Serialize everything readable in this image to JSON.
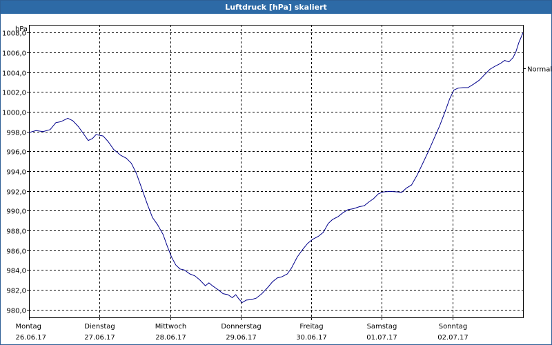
{
  "chart_data": {
    "type": "line",
    "title": "Luftdruck [hPa] skaliert",
    "ylabel": "hPa",
    "ylim": [
      979.2,
      1008.8
    ],
    "yticks": [
      980,
      982,
      984,
      986,
      988,
      990,
      992,
      994,
      996,
      998,
      1000,
      1002,
      1004,
      1006,
      1008
    ],
    "ytick_labels": [
      "980,0",
      "982,0",
      "984,0",
      "986,0",
      "988,0",
      "990,0",
      "992,0",
      "994,0",
      "996,0",
      "998,0",
      "1000,0",
      "1002,0",
      "1004,0",
      "1006,0",
      "1008,0"
    ],
    "xlim": [
      0,
      7
    ],
    "day_labels": [
      {
        "day": "Montag",
        "date": "26.06.17"
      },
      {
        "day": "Dienstag",
        "date": "27.06.17"
      },
      {
        "day": "Mittwoch",
        "date": "28.06.17"
      },
      {
        "day": "Donnerstag",
        "date": "29.06.17"
      },
      {
        "day": "Freitag",
        "date": "30.06.17"
      },
      {
        "day": "Samstag",
        "date": "01.07.17"
      },
      {
        "day": "Sonntag",
        "date": "02.07.17"
      }
    ],
    "reference_line": {
      "label": "Normal",
      "value": 1004.4
    },
    "series": [
      {
        "name": "Luftdruck",
        "color": "#00008b",
        "points": [
          [
            0.0,
            997.9
          ],
          [
            0.1,
            998.1
          ],
          [
            0.2,
            998.0
          ],
          [
            0.3,
            998.2
          ],
          [
            0.38,
            998.9
          ],
          [
            0.45,
            999.0
          ],
          [
            0.55,
            999.35
          ],
          [
            0.62,
            999.1
          ],
          [
            0.7,
            998.5
          ],
          [
            0.78,
            997.7
          ],
          [
            0.84,
            997.1
          ],
          [
            0.9,
            997.3
          ],
          [
            0.95,
            997.7
          ],
          [
            1.05,
            997.55
          ],
          [
            1.12,
            997.0
          ],
          [
            1.2,
            996.2
          ],
          [
            1.3,
            995.6
          ],
          [
            1.38,
            995.3
          ],
          [
            1.45,
            994.8
          ],
          [
            1.52,
            993.8
          ],
          [
            1.6,
            992.2
          ],
          [
            1.68,
            990.6
          ],
          [
            1.75,
            989.3
          ],
          [
            1.82,
            988.6
          ],
          [
            1.9,
            987.6
          ],
          [
            1.96,
            986.4
          ],
          [
            2.02,
            985.3
          ],
          [
            2.08,
            984.5
          ],
          [
            2.14,
            984.1
          ],
          [
            2.2,
            984.0
          ],
          [
            2.28,
            983.6
          ],
          [
            2.35,
            983.4
          ],
          [
            2.42,
            983.0
          ],
          [
            2.5,
            982.4
          ],
          [
            2.55,
            982.7
          ],
          [
            2.6,
            982.4
          ],
          [
            2.68,
            982.0
          ],
          [
            2.75,
            981.6
          ],
          [
            2.82,
            981.5
          ],
          [
            2.88,
            981.2
          ],
          [
            2.93,
            981.5
          ],
          [
            2.97,
            981.1
          ],
          [
            3.02,
            980.7
          ],
          [
            3.08,
            980.95
          ],
          [
            3.15,
            981.0
          ],
          [
            3.22,
            981.15
          ],
          [
            3.3,
            981.6
          ],
          [
            3.38,
            982.2
          ],
          [
            3.45,
            982.8
          ],
          [
            3.52,
            983.2
          ],
          [
            3.58,
            983.3
          ],
          [
            3.66,
            983.6
          ],
          [
            3.72,
            984.2
          ],
          [
            3.8,
            985.3
          ],
          [
            3.88,
            986.1
          ],
          [
            3.95,
            986.7
          ],
          [
            4.02,
            987.1
          ],
          [
            4.1,
            987.4
          ],
          [
            4.17,
            987.8
          ],
          [
            4.24,
            988.7
          ],
          [
            4.3,
            989.1
          ],
          [
            4.38,
            989.4
          ],
          [
            4.45,
            989.8
          ],
          [
            4.52,
            990.1
          ],
          [
            4.6,
            990.2
          ],
          [
            4.68,
            990.4
          ],
          [
            4.75,
            990.5
          ],
          [
            4.82,
            990.9
          ],
          [
            4.88,
            991.2
          ],
          [
            4.95,
            991.7
          ],
          [
            5.02,
            991.9
          ],
          [
            5.12,
            991.95
          ],
          [
            5.22,
            991.9
          ],
          [
            5.28,
            991.85
          ],
          [
            5.35,
            992.3
          ],
          [
            5.42,
            992.6
          ],
          [
            5.5,
            993.6
          ],
          [
            5.58,
            994.8
          ],
          [
            5.66,
            996.0
          ],
          [
            5.74,
            997.3
          ],
          [
            5.82,
            998.6
          ],
          [
            5.9,
            1000.1
          ],
          [
            5.96,
            1001.3
          ],
          [
            6.02,
            1002.2
          ],
          [
            6.08,
            1002.4
          ],
          [
            6.15,
            1002.45
          ],
          [
            6.22,
            1002.45
          ],
          [
            6.3,
            1002.8
          ],
          [
            6.38,
            1003.2
          ],
          [
            6.46,
            1003.8
          ],
          [
            6.53,
            1004.3
          ],
          [
            6.6,
            1004.6
          ],
          [
            6.68,
            1004.9
          ],
          [
            6.74,
            1005.2
          ],
          [
            6.8,
            1005.05
          ],
          [
            6.86,
            1005.5
          ],
          [
            6.9,
            1006.1
          ],
          [
            6.94,
            1007.0
          ],
          [
            7.0,
            1008.0
          ]
        ]
      }
    ]
  }
}
